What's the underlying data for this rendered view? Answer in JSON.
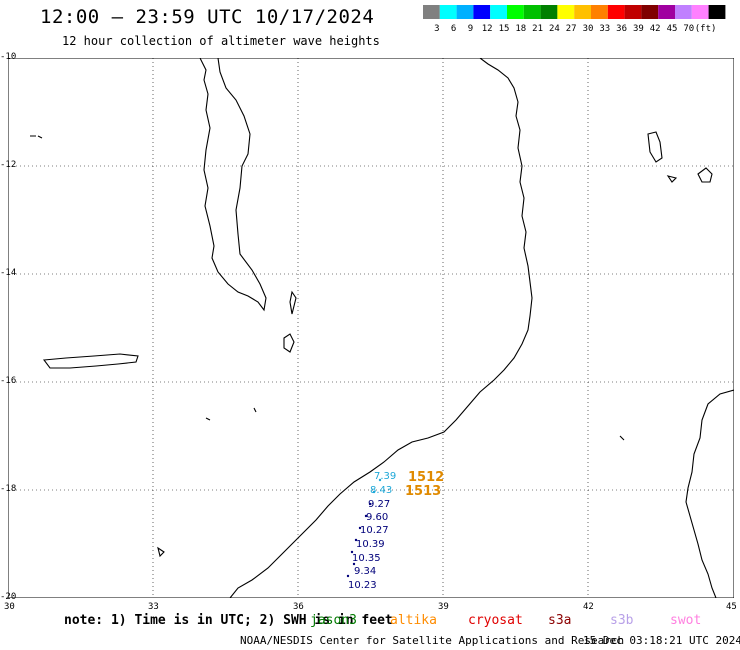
{
  "header": {
    "title": "12:00 – 23:59 UTC 10/17/2024",
    "subtitle": "12 hour collection of altimeter wave heights"
  },
  "colorbar": {
    "colors": [
      "#808080",
      "#00ffff",
      "#00b0ff",
      "#0000ff",
      "#00ffff",
      "#00ff00",
      "#00c000",
      "#008000",
      "#ffff00",
      "#ffc000",
      "#ff8000",
      "#ff0000",
      "#c00000",
      "#800000",
      "#a000a0",
      "#c080ff",
      "#ff80ff",
      "#000000"
    ],
    "labels": [
      "3",
      "6",
      "9",
      "12",
      "15",
      "18",
      "21",
      "24",
      "27",
      "30",
      "33",
      "36",
      "39",
      "42",
      "45",
      "70"
    ],
    "unit": "(ft)"
  },
  "map": {
    "lat_labels": [
      "-10",
      "-12",
      "-14",
      "-16",
      "-18",
      "-20"
    ],
    "lon_labels": [
      "30",
      "33",
      "36",
      "39",
      "42",
      "45"
    ],
    "wave_heights": [
      "7.39",
      "8.43",
      "9.27",
      "9.60",
      "10.27",
      "10.39",
      "10.35",
      "9.34",
      "10.23"
    ],
    "wave_colors": [
      "#1ea8d8",
      "#1ea8d8",
      "#00007a",
      "#00007a",
      "#00007a",
      "#00007a",
      "#00007a",
      "#00007a",
      "#00007a"
    ],
    "pass_numbers": [
      "1512",
      "1513"
    ]
  },
  "footer": {
    "note": "note: 1) Time is in UTC; 2) SWH is in feet",
    "satellites": [
      {
        "label": "jason3",
        "color": "#007a00"
      },
      {
        "label": "altika",
        "color": "#ff8c00"
      },
      {
        "label": "cryosat",
        "color": "#e00000"
      },
      {
        "label": "s3a",
        "color": "#8b0000"
      },
      {
        "label": "s3b",
        "color": "#b8a0e8"
      },
      {
        "label": "swot",
        "color": "#ff80e0"
      }
    ],
    "credit": "NOAA/NESDIS Center for Satellite Applications and Research",
    "timestamp": "15 Dec 03:18:21 UTC 2024"
  }
}
